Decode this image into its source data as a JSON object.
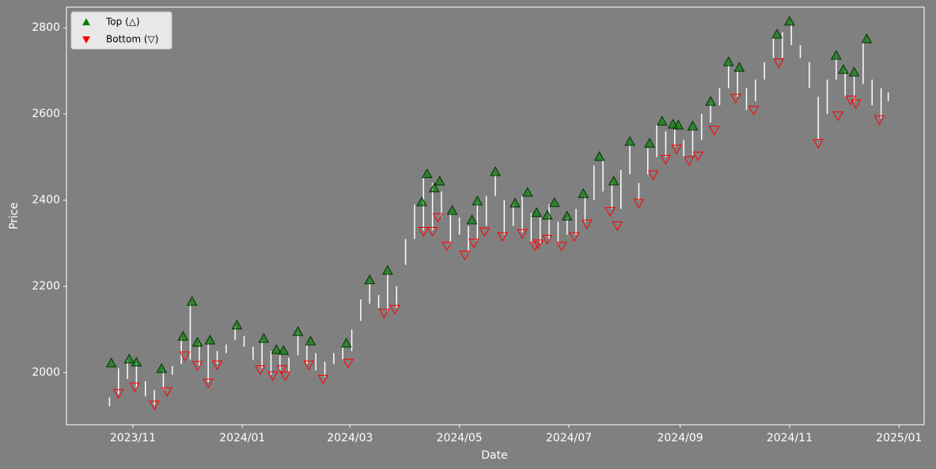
{
  "chart_data": {
    "type": "range",
    "x_label": "Date",
    "y_label": "Price",
    "xlim": [
      "2023-09-25",
      "2025-01-15"
    ],
    "ylim": [
      1879,
      2848
    ],
    "xticks": [
      {
        "value": "2023-11-01",
        "label": "2023/11"
      },
      {
        "value": "2024-01-01",
        "label": "2024/01"
      },
      {
        "value": "2024-03-01",
        "label": "2024/03"
      },
      {
        "value": "2024-05-01",
        "label": "2024/05"
      },
      {
        "value": "2024-07-01",
        "label": "2024/07"
      },
      {
        "value": "2024-09-01",
        "label": "2024/09"
      },
      {
        "value": "2024-11-01",
        "label": "2024/11"
      },
      {
        "value": "2025-01-01",
        "label": "2025/01"
      }
    ],
    "yticks": [
      2000,
      2200,
      2400,
      2600,
      2800
    ],
    "legend": "upper left",
    "bars": {
      "color": "#ffffff",
      "x": [
        "2023-10-19",
        "2023-10-24",
        "2023-10-29",
        "2023-11-03",
        "2023-11-08",
        "2023-11-13",
        "2023-11-18",
        "2023-11-23",
        "2023-11-28",
        "2023-12-03",
        "2023-12-08",
        "2023-12-13",
        "2023-12-18",
        "2023-12-23",
        "2023-12-28",
        "2024-01-02",
        "2024-01-07",
        "2024-01-12",
        "2024-01-17",
        "2024-01-22",
        "2024-01-27",
        "2024-02-01",
        "2024-02-06",
        "2024-02-11",
        "2024-02-16",
        "2024-02-21",
        "2024-02-26",
        "2024-03-02",
        "2024-03-07",
        "2024-03-12",
        "2024-03-17",
        "2024-03-22",
        "2024-03-27",
        "2024-04-01",
        "2024-04-06",
        "2024-04-11",
        "2024-04-16",
        "2024-04-21",
        "2024-04-26",
        "2024-05-01",
        "2024-05-06",
        "2024-05-11",
        "2024-05-16",
        "2024-05-21",
        "2024-05-26",
        "2024-05-31",
        "2024-06-05",
        "2024-06-10",
        "2024-06-15",
        "2024-06-20",
        "2024-06-25",
        "2024-06-30",
        "2024-07-05",
        "2024-07-10",
        "2024-07-15",
        "2024-07-20",
        "2024-07-25",
        "2024-07-30",
        "2024-08-04",
        "2024-08-09",
        "2024-08-14",
        "2024-08-19",
        "2024-08-24",
        "2024-08-29",
        "2024-09-03",
        "2024-09-08",
        "2024-09-13",
        "2024-09-18",
        "2024-09-23",
        "2024-09-28",
        "2024-10-03",
        "2024-10-08",
        "2024-10-13",
        "2024-10-18",
        "2024-10-23",
        "2024-10-28",
        "2024-11-02",
        "2024-11-07",
        "2024-11-12",
        "2024-11-17",
        "2024-11-22",
        "2024-11-27",
        "2024-12-02",
        "2024-12-07",
        "2024-12-12",
        "2024-12-17",
        "2024-12-22",
        "2024-12-26"
      ],
      "low": [
        1922,
        1950,
        1985,
        1965,
        1945,
        1925,
        1958,
        1995,
        2020,
        2030,
        2015,
        1978,
        2020,
        2045,
        2075,
        2060,
        2030,
        2010,
        1995,
        2005,
        2000,
        2040,
        2020,
        2005,
        1990,
        2020,
        2030,
        2050,
        2120,
        2160,
        2150,
        2140,
        2150,
        2250,
        2310,
        2330,
        2330,
        2360,
        2300,
        2320,
        2280,
        2305,
        2340,
        2410,
        2320,
        2340,
        2325,
        2300,
        2300,
        2310,
        2300,
        2320,
        2320,
        2350,
        2400,
        2420,
        2380,
        2380,
        2460,
        2400,
        2460,
        2500,
        2500,
        2525,
        2500,
        2505,
        2540,
        2580,
        2620,
        2660,
        2640,
        2610,
        2630,
        2680,
        2730,
        2730,
        2760,
        2730,
        2660,
        2540,
        2600,
        2680,
        2640,
        2630,
        2670,
        2620,
        2590,
        2630
      ],
      "high": [
        1942,
        2010,
        2030,
        2022,
        1980,
        1960,
        2005,
        2015,
        2080,
        2160,
        2068,
        2070,
        2050,
        2065,
        2108,
        2085,
        2060,
        2075,
        2050,
        2048,
        2035,
        2092,
        2070,
        2045,
        2025,
        2045,
        2065,
        2100,
        2170,
        2210,
        2180,
        2232,
        2200,
        2310,
        2390,
        2455,
        2440,
        2420,
        2370,
        2360,
        2340,
        2395,
        2410,
        2460,
        2400,
        2390,
        2410,
        2370,
        2360,
        2390,
        2350,
        2360,
        2380,
        2410,
        2480,
        2495,
        2440,
        2470,
        2530,
        2440,
        2520,
        2575,
        2560,
        2570,
        2540,
        2565,
        2600,
        2625,
        2660,
        2715,
        2700,
        2660,
        2680,
        2720,
        2780,
        2790,
        2810,
        2760,
        2720,
        2640,
        2680,
        2730,
        2700,
        2690,
        2770,
        2680,
        2660,
        2650
      ]
    },
    "series": [
      {
        "name": "Top (△)",
        "color": "green",
        "marker": "up",
        "x": [
          "2023-10-20",
          "2023-10-30",
          "2023-11-03",
          "2023-11-17",
          "2023-11-29",
          "2023-12-04",
          "2023-12-07",
          "2023-12-14",
          "2023-12-29",
          "2024-01-13",
          "2024-01-20",
          "2024-01-24",
          "2024-02-01",
          "2024-02-08",
          "2024-02-28",
          "2024-03-12",
          "2024-03-22",
          "2024-04-10",
          "2024-04-13",
          "2024-04-17",
          "2024-04-20",
          "2024-04-27",
          "2024-05-08",
          "2024-05-11",
          "2024-05-21",
          "2024-06-01",
          "2024-06-08",
          "2024-06-13",
          "2024-06-19",
          "2024-06-23",
          "2024-06-30",
          "2024-07-09",
          "2024-07-18",
          "2024-07-26",
          "2024-08-04",
          "2024-08-15",
          "2024-08-22",
          "2024-08-28",
          "2024-08-31",
          "2024-09-08",
          "2024-09-18",
          "2024-09-28",
          "2024-10-04",
          "2024-10-25",
          "2024-11-01",
          "2024-11-27",
          "2024-12-01",
          "2024-12-07",
          "2024-12-14"
        ],
        "values": [
          2022,
          2031,
          2024,
          2009,
          2084,
          2165,
          2070,
          2075,
          2110,
          2079,
          2053,
          2051,
          2095,
          2073,
          2068,
          2215,
          2237,
          2396,
          2461,
          2428,
          2444,
          2376,
          2354,
          2398,
          2466,
          2393,
          2418,
          2371,
          2365,
          2394,
          2363,
          2415,
          2501,
          2444,
          2536,
          2532,
          2583,
          2576,
          2574,
          2572,
          2629,
          2721,
          2708,
          2785,
          2815,
          2736,
          2703,
          2697,
          2774
        ]
      },
      {
        "name": "Bottom (▽)",
        "color": "red",
        "marker": "down",
        "x": [
          "2023-10-24",
          "2023-11-02",
          "2023-11-13",
          "2023-11-20",
          "2023-11-30",
          "2023-12-07",
          "2023-12-13",
          "2023-12-18",
          "2024-01-11",
          "2024-01-18",
          "2024-01-23",
          "2024-01-25",
          "2024-02-07",
          "2024-02-15",
          "2024-02-29",
          "2024-03-20",
          "2024-03-26",
          "2024-04-11",
          "2024-04-16",
          "2024-04-19",
          "2024-04-24",
          "2024-05-04",
          "2024-05-09",
          "2024-05-15",
          "2024-05-25",
          "2024-06-05",
          "2024-06-12",
          "2024-06-14",
          "2024-06-19",
          "2024-06-27",
          "2024-07-04",
          "2024-07-11",
          "2024-07-24",
          "2024-07-28",
          "2024-08-09",
          "2024-08-17",
          "2024-08-24",
          "2024-08-30",
          "2024-09-06",
          "2024-09-11",
          "2024-09-20",
          "2024-10-02",
          "2024-10-12",
          "2024-10-26",
          "2024-11-17",
          "2024-11-28",
          "2024-12-05",
          "2024-12-08",
          "2024-12-21"
        ],
        "values": [
          1952,
          1967,
          1925,
          1956,
          2039,
          2017,
          1976,
          2018,
          2007,
          1993,
          2007,
          1993,
          2018,
          1985,
          2022,
          2138,
          2147,
          2328,
          2328,
          2360,
          2294,
          2273,
          2301,
          2327,
          2316,
          2323,
          2294,
          2299,
          2310,
          2294,
          2316,
          2345,
          2374,
          2341,
          2393,
          2459,
          2495,
          2519,
          2492,
          2503,
          2563,
          2637,
          2609,
          2719,
          2532,
          2596,
          2633,
          2624,
          2587
        ]
      }
    ]
  }
}
